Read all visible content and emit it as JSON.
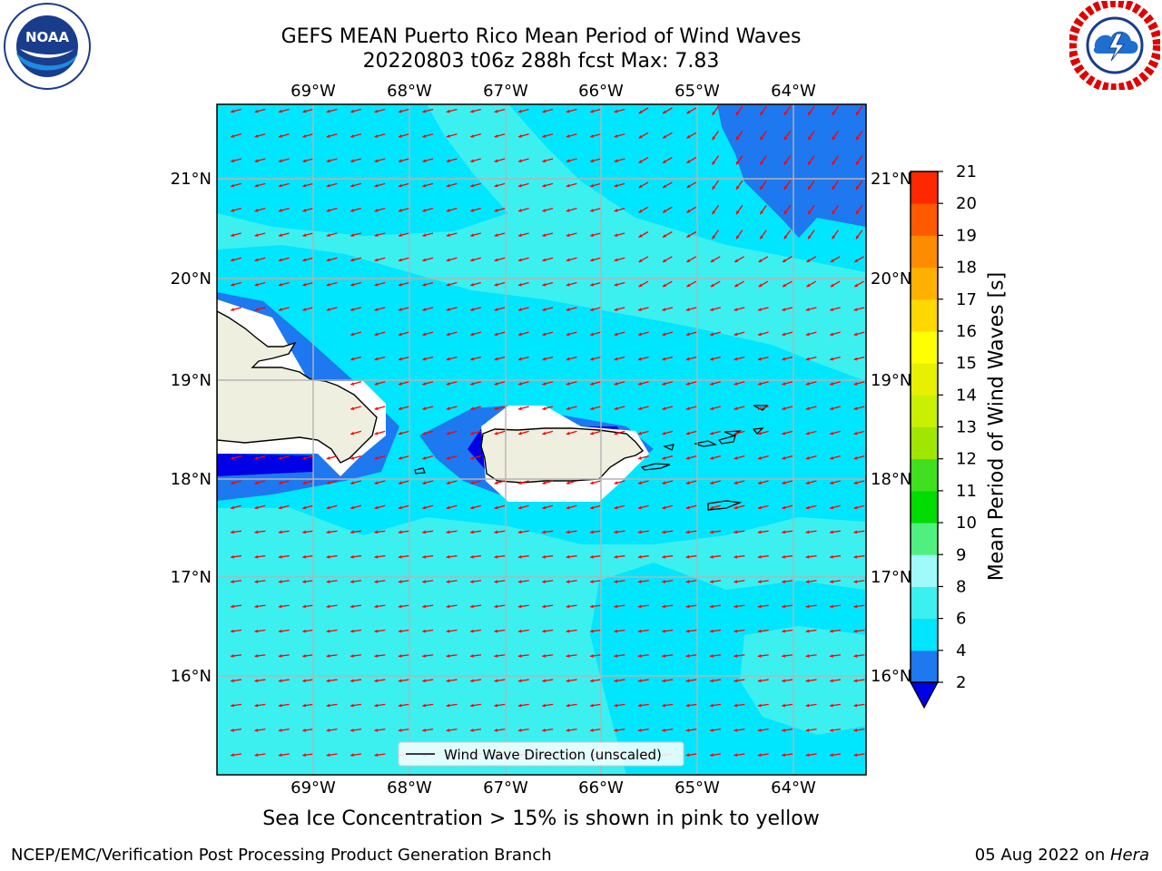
{
  "header": {
    "title_line1": "GEFS MEAN Puerto Rico Mean Period of Wind Waves",
    "title_line2": "20220803 t06z 288h fcst   Max: 7.83"
  },
  "logos": {
    "left": {
      "icon": "noaa-logo",
      "text": "NOAA",
      "ring_text": "NATIONAL OCEANIC AND ATMOSPHERIC ADMINISTRATION · U.S. DEPARTMENT OF COMMERCE"
    },
    "right": {
      "icon": "nws-logo",
      "ring_text": "NATIONAL WEATHER SERVICE"
    }
  },
  "map": {
    "lon_labels": [
      "69°W",
      "68°W",
      "67°W",
      "66°W",
      "65°W",
      "64°W"
    ],
    "lat_labels": [
      "21°N",
      "20°N",
      "19°N",
      "18°N",
      "17°N",
      "16°N"
    ],
    "legend_label": "Wind Wave Direction (unscaled)",
    "colors": {
      "land": "#efefdf",
      "shade_2_4": "#1e78f0",
      "shade_4_6": "#00e6ff",
      "shade_6_8": "#3cf0f0",
      "below_2": "#0000e6",
      "arrow": "#ff0000"
    }
  },
  "colorbar": {
    "title": "Mean Period of Wind Waves [s]",
    "ticks": [
      "2",
      "4",
      "6",
      "8",
      "9",
      "10",
      "11",
      "12",
      "13",
      "14",
      "15",
      "16",
      "17",
      "18",
      "19",
      "20",
      "21"
    ],
    "colors": [
      "#1e78f0",
      "#00e6ff",
      "#3cf0f0",
      "#a0fafa",
      "#50f080",
      "#00dc00",
      "#40e020",
      "#a0e600",
      "#c8f000",
      "#e6f000",
      "#ffff00",
      "#ffd800",
      "#ffb000",
      "#ff8c00",
      "#ff5a00",
      "#ff2800"
    ],
    "extend_color": "#0000e6"
  },
  "footer": {
    "note": "Sea Ice Concentration > 15% is shown in pink to yellow",
    "left": "NCEP/EMC/Verification Post Processing Product Generation Branch",
    "right_prefix": "05 Aug 2022 on ",
    "right_host": "Hera"
  }
}
